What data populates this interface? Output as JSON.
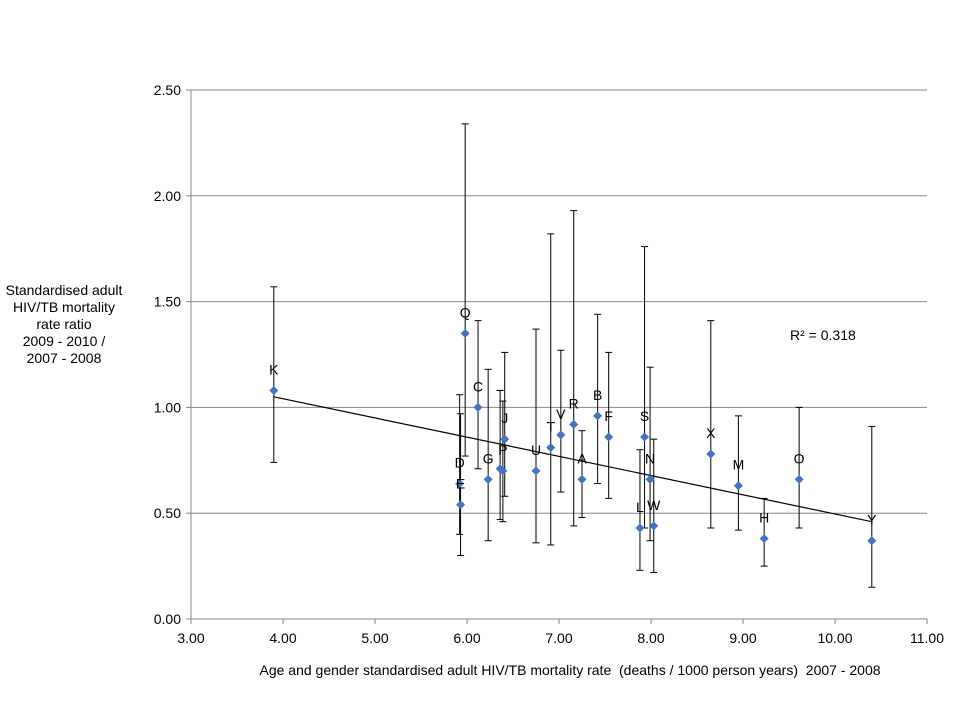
{
  "chart_data": {
    "type": "scatter",
    "title": "",
    "xlabel": "Age and gender standardised adult HIV/TB mortality rate  (deaths / 1000 person years)  2007 - 2008",
    "ylabel_lines": [
      "Standardised  adult",
      "HIV/TB mortality",
      "rate ratio",
      "2009 - 2010 /",
      "2007 - 2008"
    ],
    "xlim": [
      3.0,
      11.0
    ],
    "ylim": [
      0.0,
      2.5
    ],
    "xticks": [
      3.0,
      4.0,
      5.0,
      6.0,
      7.0,
      8.0,
      9.0,
      10.0,
      11.0
    ],
    "yticks": [
      0.0,
      0.5,
      1.0,
      1.5,
      2.0,
      2.5
    ],
    "xtick_labels": [
      "3.00",
      "4.00",
      "5.00",
      "6.00",
      "7.00",
      "8.00",
      "9.00",
      "10.00",
      "11.00"
    ],
    "ytick_labels": [
      "0.00",
      "0.50",
      "1.00",
      "1.50",
      "2.00",
      "2.50"
    ],
    "grid": "horizontal",
    "marker_color": "#4472C4",
    "r_squared_label": "R² = 0.318",
    "trendline": {
      "x": [
        3.9,
        10.4
      ],
      "y": [
        1.05,
        0.46
      ]
    },
    "points": [
      {
        "label": "K",
        "x": 3.9,
        "y": 1.08,
        "low": 0.74,
        "high": 1.57
      },
      {
        "label": "D",
        "x": 5.92,
        "y": 0.64,
        "low": 0.4,
        "high": 1.06
      },
      {
        "label": "E",
        "x": 5.93,
        "y": 0.54,
        "low": 0.3,
        "high": 0.97
      },
      {
        "label": "Q",
        "x": 5.98,
        "y": 1.35,
        "low": 0.77,
        "high": 2.34
      },
      {
        "label": "C",
        "x": 6.12,
        "y": 1.0,
        "low": 0.71,
        "high": 1.41
      },
      {
        "label": "G",
        "x": 6.23,
        "y": 0.66,
        "low": 0.37,
        "high": 1.18
      },
      {
        "label": "I",
        "x": 6.36,
        "y": 0.71,
        "low": 0.47,
        "high": 1.08
      },
      {
        "label": "P",
        "x": 6.39,
        "y": 0.7,
        "low": 0.46,
        "high": 1.03
      },
      {
        "label": "J",
        "x": 6.41,
        "y": 0.85,
        "low": 0.58,
        "high": 1.26
      },
      {
        "label": "U",
        "x": 6.75,
        "y": 0.7,
        "low": 0.36,
        "high": 1.37
      },
      {
        "label": "T",
        "x": 6.91,
        "y": 0.81,
        "low": 0.35,
        "high": 1.82
      },
      {
        "label": "V",
        "x": 7.02,
        "y": 0.87,
        "low": 0.6,
        "high": 1.27
      },
      {
        "label": "R",
        "x": 7.16,
        "y": 0.92,
        "low": 0.44,
        "high": 1.93
      },
      {
        "label": "A",
        "x": 7.25,
        "y": 0.66,
        "low": 0.48,
        "high": 0.89
      },
      {
        "label": "B",
        "x": 7.42,
        "y": 0.96,
        "low": 0.64,
        "high": 1.44
      },
      {
        "label": "F",
        "x": 7.54,
        "y": 0.86,
        "low": 0.57,
        "high": 1.26
      },
      {
        "label": "L",
        "x": 7.88,
        "y": 0.43,
        "low": 0.23,
        "high": 0.8
      },
      {
        "label": "S",
        "x": 7.93,
        "y": 0.86,
        "low": 0.43,
        "high": 1.76
      },
      {
        "label": "N",
        "x": 7.99,
        "y": 0.66,
        "low": 0.37,
        "high": 1.19
      },
      {
        "label": "W",
        "x": 8.03,
        "y": 0.44,
        "low": 0.22,
        "high": 0.85
      },
      {
        "label": "X",
        "x": 8.65,
        "y": 0.78,
        "low": 0.43,
        "high": 1.41
      },
      {
        "label": "M",
        "x": 8.95,
        "y": 0.63,
        "low": 0.42,
        "high": 0.96
      },
      {
        "label": "H",
        "x": 9.23,
        "y": 0.38,
        "low": 0.25,
        "high": 0.57
      },
      {
        "label": "O",
        "x": 9.61,
        "y": 0.66,
        "low": 0.43,
        "high": 1.0
      },
      {
        "label": "Y",
        "x": 10.4,
        "y": 0.37,
        "low": 0.15,
        "high": 0.91
      }
    ]
  }
}
